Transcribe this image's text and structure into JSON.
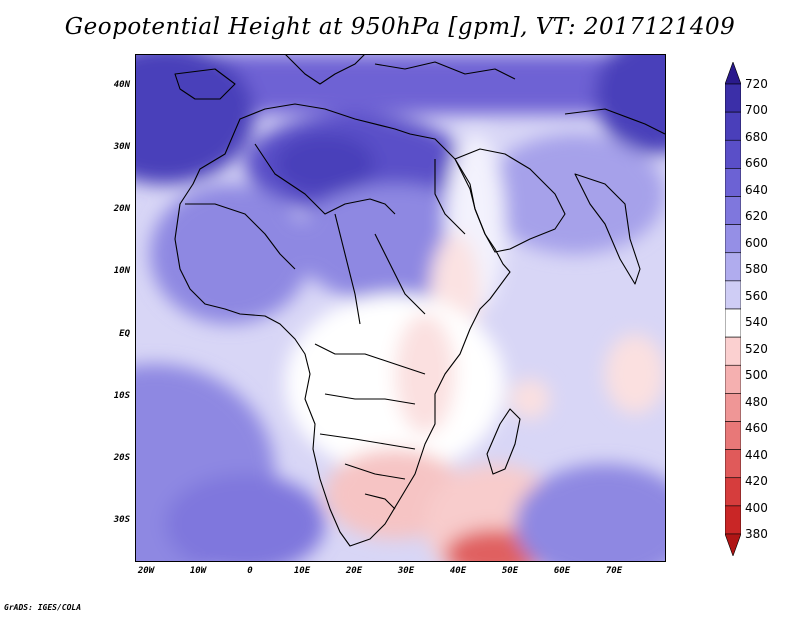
{
  "title": "Geopotential Height at 950hPa [gpm], VT: 2017121409",
  "credit": "GrADS: IGES/COLA",
  "lat_labels": [
    "40N",
    "30N",
    "20N",
    "10N",
    "EQ",
    "10S",
    "20S",
    "30S"
  ],
  "lon_labels": [
    "20W",
    "10W",
    "0",
    "10E",
    "20E",
    "30E",
    "40E",
    "50E",
    "60E",
    "70E"
  ],
  "colorbar": {
    "levels": [
      "720",
      "700",
      "680",
      "660",
      "640",
      "620",
      "600",
      "580",
      "560",
      "540",
      "520",
      "500",
      "480",
      "460",
      "440",
      "420",
      "400",
      "380"
    ],
    "colors": [
      "#2a1a8c",
      "#3b2fa8",
      "#4a3fba",
      "#5a4fc8",
      "#6c62d4",
      "#7f77dd",
      "#958fe6",
      "#b0acee",
      "#cfcdf5",
      "#ffffff",
      "#fbd0d0",
      "#f5b0b0",
      "#ef9696",
      "#e87878",
      "#e05a5a",
      "#d63d3d",
      "#c92626",
      "#b01515"
    ]
  }
}
